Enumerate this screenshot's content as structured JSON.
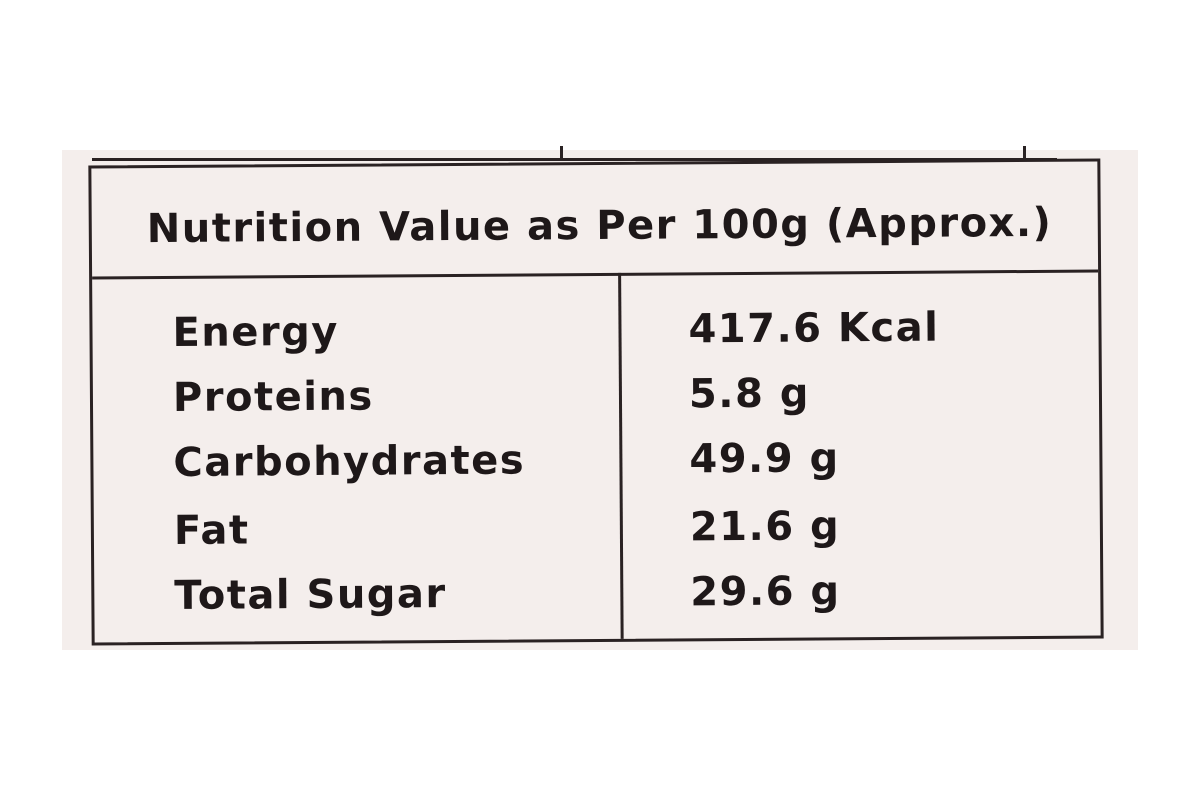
{
  "table": {
    "title": "Nutrition Value as Per 100g  (Approx.)",
    "rows": [
      [
        "Energy",
        "417.6 Kcal"
      ],
      [
        "Proteins",
        "5.8 g"
      ],
      [
        "Carbohydrates",
        "49.9 g"
      ],
      [
        "Fat",
        "21.6 g"
      ],
      [
        "Total Sugar",
        "29.6 g"
      ]
    ]
  }
}
